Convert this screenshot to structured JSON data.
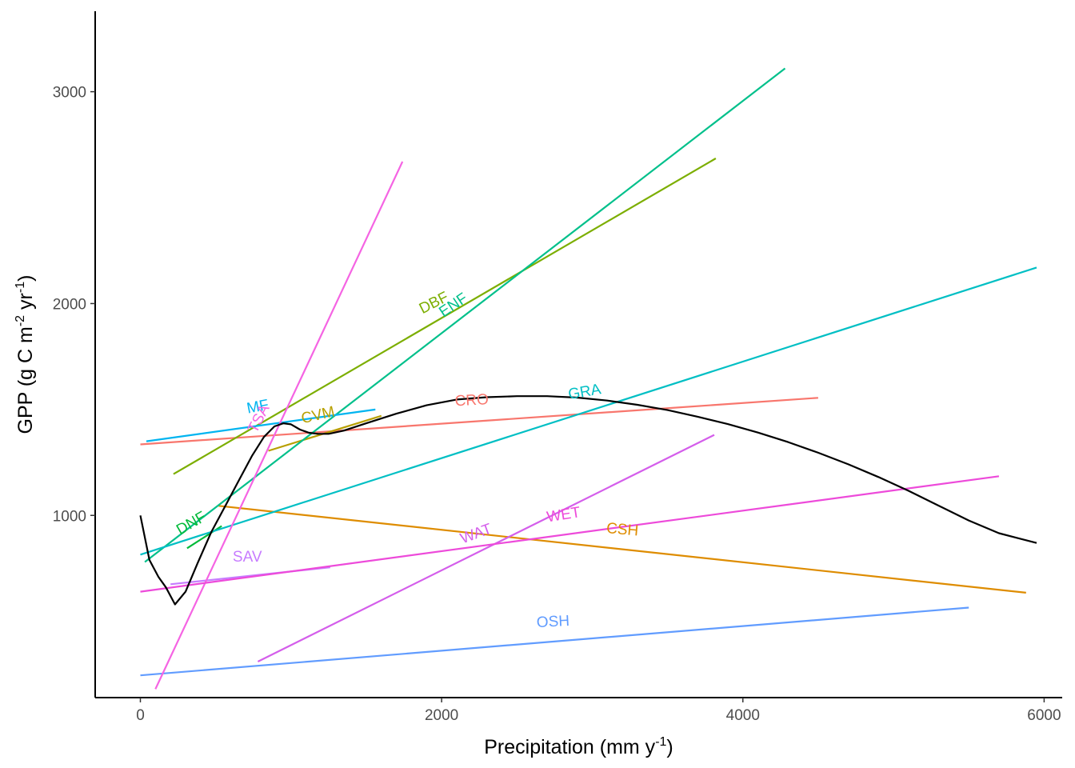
{
  "chart_data": {
    "type": "line",
    "xlabel": "Precipitation (mm y",
    "xlabel_sup": "-1",
    "xlabel_end": ")",
    "ylabel": "GPP (g C m",
    "ylabel_sup1": "-2",
    "ylabel_mid": " yr",
    "ylabel_sup2": "-1",
    "ylabel_end": ")",
    "xlim": [
      -300,
      6120
    ],
    "ylim": [
      140,
      3380
    ],
    "x_ticks": [
      0,
      2000,
      4000,
      6000
    ],
    "x_tick_labels": [
      "0",
      "2000",
      "4000",
      "6000"
    ],
    "y_ticks": [
      1000,
      2000,
      3000
    ],
    "y_tick_labels": [
      "1000",
      "2000",
      "3000"
    ],
    "grid": false,
    "legend": "none",
    "series": [
      {
        "name": "CRO",
        "color": "#F8766D",
        "x": [
          0,
          4500
        ],
        "y": [
          1335,
          1555
        ],
        "label_pos": [
          2200,
          1540
        ],
        "label_angle": -3
      },
      {
        "name": "CSH",
        "color": "#DE8C00",
        "x": [
          520,
          5880
        ],
        "y": [
          1045,
          635
        ],
        "label_pos": [
          3200,
          930
        ],
        "label_angle": 5
      },
      {
        "name": "CVM",
        "color": "#B79F00",
        "x": [
          850,
          1600
        ],
        "y": [
          1305,
          1470
        ],
        "label_pos": [
          1180,
          1470
        ],
        "label_angle": -13
      },
      {
        "name": "DBF",
        "color": "#7CAE00",
        "x": [
          220,
          3820
        ],
        "y": [
          1195,
          2685
        ],
        "label_pos": [
          1950,
          2000
        ],
        "label_angle": -27
      },
      {
        "name": "DNF",
        "color": "#00BA38",
        "x": [
          310,
          540
        ],
        "y": [
          845,
          950
        ],
        "label_pos": [
          340,
          960
        ],
        "label_angle": -30
      },
      {
        "name": "ENF",
        "color": "#00C08B",
        "x": [
          30,
          4280
        ],
        "y": [
          780,
          3110
        ],
        "label_pos": [
          2080,
          1990
        ],
        "label_angle": -34
      },
      {
        "name": "GRA",
        "color": "#00BFC4",
        "x": [
          0,
          5950
        ],
        "y": [
          815,
          2170
        ],
        "label_pos": [
          2950,
          1580
        ],
        "label_angle": -10
      },
      {
        "name": "MF",
        "color": "#00B4F0",
        "x": [
          40,
          1560
        ],
        "y": [
          1350,
          1500
        ],
        "label_pos": [
          780,
          1510
        ],
        "label_angle": -11
      },
      {
        "name": "OSH",
        "color": "#619CFF",
        "x": [
          0,
          5500
        ],
        "y": [
          245,
          565
        ],
        "label_pos": [
          2740,
          495
        ],
        "label_angle": -3
      },
      {
        "name": "SAV",
        "color": "#C77CFF",
        "x": [
          200,
          1260
        ],
        "y": [
          675,
          755
        ],
        "label_pos": [
          710,
          800
        ],
        "label_angle": 0
      },
      {
        "name": "TSA",
        "color": "#F564E3",
        "x": [
          100,
          1740
        ],
        "y": [
          180,
          2670
        ],
        "label_pos": [
          790,
          1455
        ],
        "label_angle": -63
      },
      {
        "name": "WAT",
        "color": "#D45EEB",
        "x": [
          780,
          3810
        ],
        "y": [
          310,
          1380
        ],
        "label_pos": [
          2230,
          910
        ],
        "label_angle": -20
      },
      {
        "name": "WET",
        "color": "#ED4ADA",
        "x": [
          0,
          5700
        ],
        "y": [
          640,
          1185
        ],
        "label_pos": [
          2810,
          1000
        ],
        "label_angle": -9
      },
      {
        "name": "",
        "color": "#000000",
        "x": [
          0,
          60,
          120,
          170,
          230,
          300,
          380,
          470,
          560,
          650,
          740,
          820,
          890,
          950,
          1000,
          1060,
          1120,
          1180,
          1250,
          1350,
          1500,
          1700,
          1900,
          2100,
          2300,
          2500,
          2700,
          2900,
          3100,
          3300,
          3500,
          3700,
          3900,
          4100,
          4300,
          4500,
          4700,
          4900,
          5100,
          5300,
          5500,
          5700,
          5950
        ],
        "y": [
          1000,
          790,
          710,
          660,
          580,
          640,
          775,
          920,
          1040,
          1160,
          1280,
          1370,
          1420,
          1435,
          1430,
          1405,
          1390,
          1385,
          1385,
          1400,
          1435,
          1480,
          1520,
          1547,
          1558,
          1563,
          1563,
          1556,
          1542,
          1522,
          1497,
          1466,
          1431,
          1391,
          1346,
          1296,
          1241,
          1181,
          1116,
          1046,
          976,
          916,
          870
        ]
      }
    ]
  }
}
